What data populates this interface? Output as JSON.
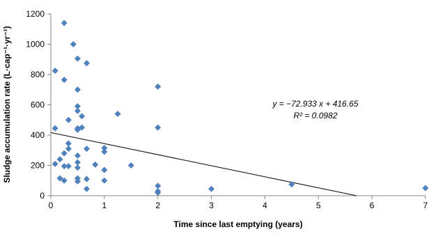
{
  "chart_data": {
    "type": "scatter",
    "title": "",
    "xlabel": "Time since last emptying (years)",
    "ylabel": "Sludge accumulation rate (L·cap⁻¹·yr⁻¹)",
    "xlim": [
      0,
      7
    ],
    "ylim": [
      0,
      1200
    ],
    "xticks": [
      "0",
      "1",
      "2",
      "3",
      "4",
      "5",
      "6",
      "7"
    ],
    "yticks": [
      "0",
      "200",
      "400",
      "600",
      "800",
      "1000",
      "1200"
    ],
    "grid": false,
    "legend": "none",
    "marker_color": "#4f81bd",
    "trendline": {
      "slope": -72.933,
      "intercept": 416.65,
      "equation": "y = −72.933 x + 416.65",
      "r_squared": "R² = 0.0982",
      "color": "#000000"
    },
    "points": [
      {
        "x": 0.08,
        "y": 825
      },
      {
        "x": 0.08,
        "y": 445
      },
      {
        "x": 0.08,
        "y": 210
      },
      {
        "x": 0.17,
        "y": 115
      },
      {
        "x": 0.17,
        "y": 240
      },
      {
        "x": 0.25,
        "y": 1140
      },
      {
        "x": 0.25,
        "y": 765
      },
      {
        "x": 0.25,
        "y": 280
      },
      {
        "x": 0.25,
        "y": 195
      },
      {
        "x": 0.25,
        "y": 100
      },
      {
        "x": 0.33,
        "y": 500
      },
      {
        "x": 0.33,
        "y": 345
      },
      {
        "x": 0.33,
        "y": 310
      },
      {
        "x": 0.33,
        "y": 195
      },
      {
        "x": 0.42,
        "y": 1000
      },
      {
        "x": 0.5,
        "y": 905
      },
      {
        "x": 0.5,
        "y": 700
      },
      {
        "x": 0.5,
        "y": 590
      },
      {
        "x": 0.5,
        "y": 560
      },
      {
        "x": 0.5,
        "y": 445
      },
      {
        "x": 0.5,
        "y": 435
      },
      {
        "x": 0.5,
        "y": 265
      },
      {
        "x": 0.5,
        "y": 220
      },
      {
        "x": 0.5,
        "y": 185
      },
      {
        "x": 0.5,
        "y": 115
      },
      {
        "x": 0.5,
        "y": 95
      },
      {
        "x": 0.58,
        "y": 525
      },
      {
        "x": 0.58,
        "y": 450
      },
      {
        "x": 0.67,
        "y": 875
      },
      {
        "x": 0.67,
        "y": 310
      },
      {
        "x": 0.67,
        "y": 110
      },
      {
        "x": 0.67,
        "y": 45
      },
      {
        "x": 0.83,
        "y": 205
      },
      {
        "x": 1.0,
        "y": 315
      },
      {
        "x": 1.0,
        "y": 290
      },
      {
        "x": 1.0,
        "y": 170
      },
      {
        "x": 1.0,
        "y": 100
      },
      {
        "x": 1.25,
        "y": 540
      },
      {
        "x": 1.5,
        "y": 200
      },
      {
        "x": 2.0,
        "y": 720
      },
      {
        "x": 2.0,
        "y": 450
      },
      {
        "x": 2.0,
        "y": 65
      },
      {
        "x": 2.0,
        "y": 30
      },
      {
        "x": 2.0,
        "y": 20
      },
      {
        "x": 3.0,
        "y": 45
      },
      {
        "x": 4.5,
        "y": 75
      },
      {
        "x": 7.0,
        "y": 50
      }
    ]
  }
}
